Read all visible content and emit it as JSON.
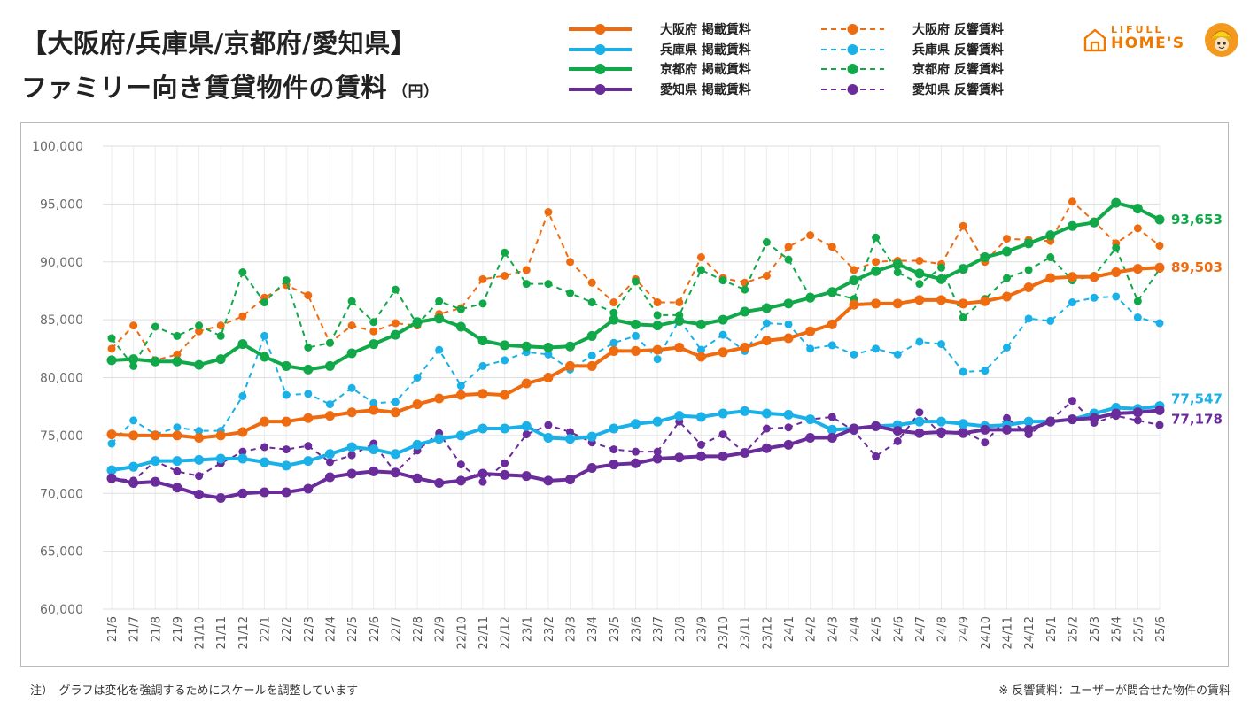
{
  "title": {
    "line1": "【大阪府/兵庫県/京都府/愛知県】",
    "line2": "ファミリー向き賃貸物件の賃料",
    "unit": "（円）"
  },
  "logo": {
    "top": "LIFULL",
    "bottom": "HOME'S"
  },
  "notes": {
    "left": "注）　グラフは変化を強調するためにスケールを調整しています",
    "right": "※ 反響賃料：ユーザーが問合せた物件の賃料"
  },
  "chart_data": {
    "type": "line",
    "ylim": [
      60000,
      100000
    ],
    "yticks": [
      "60,000",
      "65,000",
      "70,000",
      "75,000",
      "80,000",
      "85,000",
      "90,000",
      "95,000",
      "100,000"
    ],
    "grid": true,
    "legend_position": "top",
    "categories": [
      "21/6",
      "21/7",
      "21/8",
      "21/9",
      "21/10",
      "21/11",
      "21/12",
      "22/1",
      "22/2",
      "22/3",
      "22/4",
      "22/5",
      "22/6",
      "22/7",
      "22/8",
      "22/9",
      "22/10",
      "22/11",
      "22/12",
      "23/1",
      "23/2",
      "23/3",
      "23/4",
      "23/5",
      "23/6",
      "23/7",
      "23/8",
      "23/9",
      "23/10",
      "23/11",
      "23/12",
      "24/1",
      "24/2",
      "24/3",
      "24/4",
      "24/5",
      "24/6",
      "24/7",
      "24/8",
      "24/9",
      "24/10",
      "24/11",
      "24/12",
      "25/1",
      "25/2",
      "25/3",
      "25/4",
      "25/5",
      "25/6"
    ],
    "end_labels": [
      {
        "text": "93,653",
        "color": "#11a84a"
      },
      {
        "text": "89,503",
        "color": "#ee6b10"
      },
      {
        "text": "77,547",
        "color": "#1ab0e8"
      },
      {
        "text": "77,178",
        "color": "#6a2c9a"
      }
    ],
    "series": [
      {
        "name": "大阪府 掲載賃料",
        "color": "#ee6b10",
        "style": "solid",
        "values": [
          75100,
          75000,
          75000,
          75000,
          74800,
          75000,
          75300,
          76200,
          76200,
          76500,
          76700,
          77000,
          77200,
          77000,
          77700,
          78200,
          78500,
          78600,
          78500,
          79500,
          80000,
          81000,
          81000,
          82300,
          82300,
          82400,
          82600,
          81800,
          82200,
          82600,
          83200,
          83400,
          84000,
          84600,
          86300,
          86400,
          86400,
          86700,
          86700,
          86400,
          86600,
          87000,
          87800,
          88600,
          88700,
          88700,
          89100,
          89400,
          89503
        ]
      },
      {
        "name": "兵庫県 掲載賃料",
        "color": "#1ab0e8",
        "style": "solid",
        "values": [
          72000,
          72300,
          72800,
          72800,
          72900,
          73000,
          73000,
          72700,
          72400,
          72800,
          73400,
          74000,
          73800,
          73400,
          74200,
          74700,
          75000,
          75600,
          75600,
          75800,
          74800,
          74700,
          74900,
          75600,
          76000,
          76200,
          76700,
          76600,
          76900,
          77100,
          76900,
          76800,
          76400,
          75500,
          75600,
          75800,
          75900,
          76200,
          76200,
          76000,
          75800,
          75900,
          76200,
          76200,
          76400,
          76900,
          77400,
          77300,
          77547
        ]
      },
      {
        "name": "京都府 掲載賃料",
        "color": "#11a84a",
        "style": "solid",
        "values": [
          81500,
          81600,
          81400,
          81400,
          81100,
          81600,
          82900,
          81800,
          81000,
          80700,
          81000,
          82100,
          82900,
          83700,
          84800,
          85100,
          84400,
          83200,
          82800,
          82700,
          82600,
          82700,
          83600,
          85000,
          84600,
          84500,
          84900,
          84600,
          85000,
          85700,
          86000,
          86400,
          86900,
          87400,
          88400,
          89200,
          89800,
          89000,
          88500,
          89400,
          90400,
          90900,
          91600,
          92300,
          93100,
          93400,
          95100,
          94600,
          93653
        ]
      },
      {
        "name": "愛知県 掲載賃料",
        "color": "#6a2c9a",
        "style": "solid",
        "values": [
          71300,
          70900,
          71000,
          70500,
          69900,
          69600,
          70000,
          70100,
          70100,
          70400,
          71400,
          71700,
          71900,
          71800,
          71300,
          70900,
          71100,
          71700,
          71600,
          71500,
          71100,
          71200,
          72200,
          72500,
          72600,
          73000,
          73100,
          73200,
          73200,
          73500,
          73900,
          74200,
          74800,
          74800,
          75600,
          75800,
          75400,
          75200,
          75300,
          75200,
          75500,
          75500,
          75500,
          76200,
          76400,
          76500,
          76900,
          77000,
          77178
        ]
      },
      {
        "name": "大阪府 反響賃料",
        "color": "#ee6b10",
        "style": "dashed",
        "values": [
          82500,
          84500,
          81500,
          82000,
          84000,
          84500,
          85300,
          86900,
          88000,
          87100,
          83000,
          84500,
          84000,
          84700,
          84500,
          85500,
          86000,
          88500,
          88800,
          89300,
          94300,
          90000,
          88200,
          86500,
          88500,
          86500,
          86500,
          90400,
          88600,
          88200,
          88800,
          91300,
          92300,
          91300,
          89300,
          90000,
          90100,
          90100,
          89800,
          93100,
          90000,
          92000,
          91900,
          91800,
          95200,
          93500,
          91600,
          92900,
          91400
        ]
      },
      {
        "name": "兵庫県 反響賃料",
        "color": "#1ab0e8",
        "style": "dashed",
        "values": [
          74300,
          76300,
          75100,
          75700,
          75400,
          75400,
          78400,
          83600,
          78500,
          78600,
          77700,
          79100,
          77800,
          77900,
          80000,
          82400,
          79300,
          81000,
          81500,
          82200,
          82000,
          80700,
          81900,
          83000,
          83600,
          81600,
          85000,
          82400,
          83700,
          82300,
          84700,
          84600,
          82500,
          82800,
          82000,
          82500,
          82000,
          83100,
          82900,
          80500,
          80600,
          82600,
          85100,
          84900,
          86500,
          86900,
          87000,
          85200,
          84700
        ]
      },
      {
        "name": "京都府 反響賃料",
        "color": "#11a84a",
        "style": "dashed",
        "values": [
          83400,
          81000,
          84400,
          83600,
          84500,
          83600,
          89100,
          86500,
          88400,
          82600,
          83000,
          86600,
          84800,
          87600,
          84600,
          86600,
          85900,
          86400,
          90800,
          88100,
          88100,
          87300,
          86500,
          85600,
          88300,
          85400,
          85400,
          89300,
          88400,
          87600,
          91700,
          90200,
          87000,
          87300,
          86800,
          92100,
          89100,
          88100,
          89500,
          85200,
          86800,
          88600,
          89300,
          90400,
          88400,
          88800,
          91200,
          86600,
          89400
        ]
      },
      {
        "name": "愛知県 反響賃料",
        "color": "#6a2c9a",
        "style": "dashed",
        "values": [
          71300,
          71100,
          72800,
          71900,
          71500,
          72600,
          73600,
          74000,
          73800,
          74100,
          72700,
          73300,
          74300,
          71800,
          73700,
          75200,
          72500,
          71000,
          72600,
          75100,
          75900,
          75300,
          74400,
          73800,
          73600,
          73600,
          76200,
          74200,
          75100,
          73500,
          75600,
          75700,
          76400,
          76600,
          75400,
          73200,
          74500,
          77000,
          75100,
          75400,
          74400,
          76500,
          75100,
          76300,
          78000,
          76100,
          76700,
          76300,
          75900
        ]
      }
    ]
  }
}
